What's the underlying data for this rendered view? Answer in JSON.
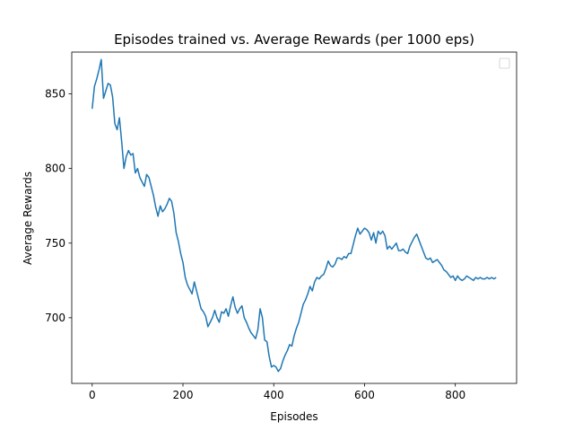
{
  "chart_data": {
    "type": "line",
    "title": "Episodes trained vs. Average Rewards (per 1000 eps)",
    "xlabel": "Episodes",
    "ylabel": "Average Rewards",
    "xlim": [
      -45,
      935
    ],
    "ylim": [
      656,
      878
    ],
    "xticks": [
      0,
      200,
      400,
      600,
      800
    ],
    "yticks": [
      700,
      750,
      800,
      850
    ],
    "grid": false,
    "legend": "top-right (empty)",
    "line_color": "#1f77b4",
    "series": [
      {
        "x": [
          0,
          5,
          10,
          15,
          20,
          25,
          30,
          35,
          40,
          45,
          50,
          55,
          60,
          65,
          70,
          75,
          80,
          85,
          90,
          95,
          100,
          105,
          110,
          115,
          120,
          125,
          130,
          135,
          140,
          145,
          150,
          155,
          160,
          165,
          170,
          175,
          180,
          185,
          190,
          195,
          200,
          205,
          210,
          215,
          220,
          225,
          230,
          235,
          240,
          245,
          250,
          255,
          260,
          265,
          270,
          275,
          280,
          285,
          290,
          295,
          300,
          305,
          310,
          315,
          320,
          325,
          330,
          335,
          340,
          345,
          350,
          355,
          360,
          365,
          370,
          375,
          380,
          385,
          390,
          395,
          400,
          405,
          410,
          415,
          420,
          425,
          430,
          435,
          440,
          445,
          450,
          455,
          460,
          465,
          470,
          475,
          480,
          485,
          490,
          495,
          500,
          505,
          510,
          515,
          520,
          525,
          530,
          535,
          540,
          545,
          550,
          555,
          560,
          565,
          570,
          575,
          580,
          585,
          590,
          595,
          600,
          605,
          610,
          615,
          620,
          625,
          630,
          635,
          640,
          645,
          650,
          655,
          660,
          665,
          670,
          675,
          680,
          685,
          690,
          695,
          700,
          705,
          710,
          715,
          720,
          725,
          730,
          735,
          740,
          745,
          750,
          755,
          760,
          765,
          770,
          775,
          780,
          785,
          790,
          795,
          800,
          805,
          810,
          815,
          820,
          825,
          830,
          835,
          840,
          845,
          850,
          855,
          860,
          865,
          870,
          875,
          880,
          885,
          890
        ],
        "y": [
          840,
          855,
          860,
          866,
          873,
          847,
          852,
          857,
          856,
          848,
          830,
          826,
          834,
          818,
          800,
          808,
          812,
          809,
          810,
          797,
          800,
          794,
          791,
          788,
          796,
          794,
          788,
          782,
          774,
          768,
          775,
          771,
          773,
          776,
          780,
          778,
          770,
          757,
          751,
          743,
          737,
          727,
          722,
          719,
          716,
          724,
          718,
          712,
          706,
          704,
          701,
          694,
          697,
          700,
          705,
          700,
          697,
          704,
          703,
          706,
          701,
          708,
          714,
          707,
          703,
          706,
          708,
          700,
          697,
          693,
          690,
          688,
          686,
          692,
          706,
          700,
          685,
          684,
          674,
          667,
          668,
          667,
          664,
          666,
          671,
          675,
          678,
          682,
          681,
          688,
          693,
          697,
          703,
          709,
          712,
          716,
          721,
          718,
          724,
          727,
          726,
          728,
          729,
          733,
          738,
          735,
          734,
          736,
          740,
          740,
          739,
          741,
          740,
          743,
          743,
          749,
          755,
          760,
          756,
          758,
          760,
          759,
          757,
          752,
          757,
          750,
          758,
          756,
          758,
          755,
          746,
          748,
          746,
          748,
          750,
          745,
          745,
          746,
          744,
          743,
          748,
          751,
          754,
          756,
          752,
          748,
          744,
          740,
          739,
          740,
          737,
          738,
          739,
          737,
          735,
          732,
          731,
          729,
          727,
          728,
          725,
          728,
          726,
          725,
          726,
          728,
          727,
          726,
          725,
          727,
          726,
          727,
          726,
          726,
          727,
          726,
          727,
          726,
          727
        ]
      }
    ]
  }
}
